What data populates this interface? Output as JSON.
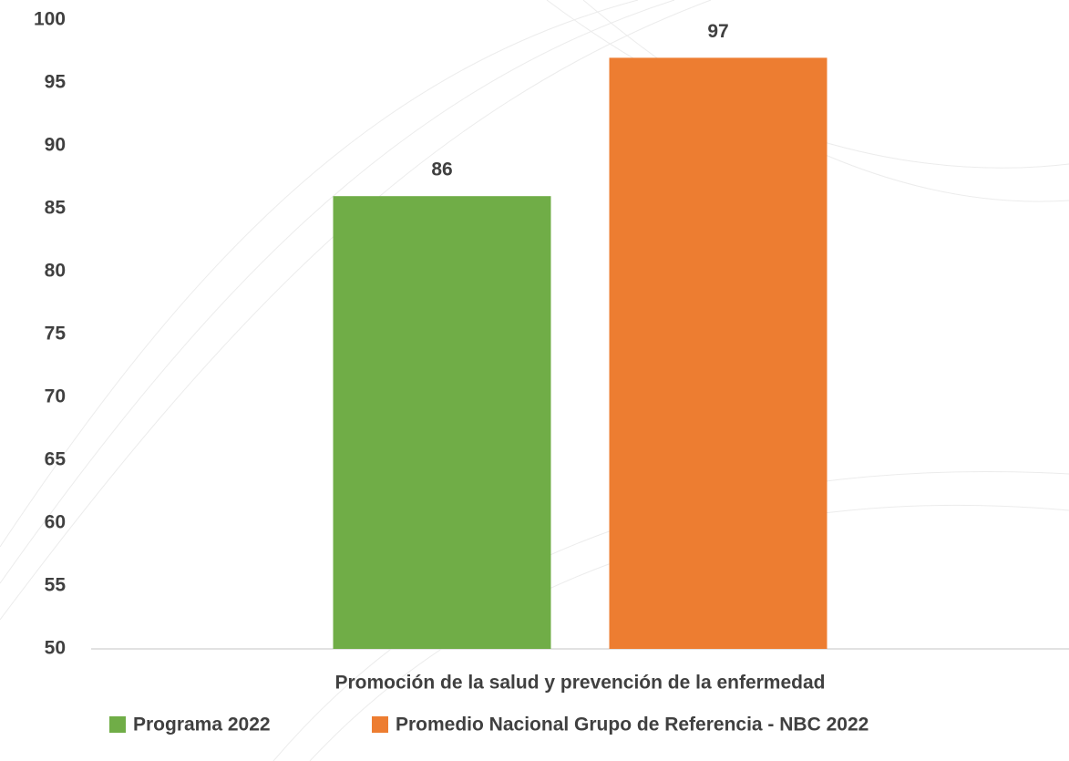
{
  "chart_data": {
    "type": "bar",
    "categories": [
      "Promoción de la salud y prevención de la enfermedad"
    ],
    "series": [
      {
        "name": "Programa 2022",
        "color": "#70ad47",
        "values": [
          86
        ]
      },
      {
        "name": "Promedio Nacional Grupo de Referencia - NBC 2022",
        "color": "#ed7d31",
        "values": [
          97
        ]
      }
    ],
    "ylim": [
      50,
      100
    ],
    "yticks": [
      50,
      55,
      60,
      65,
      70,
      75,
      80,
      85,
      90,
      95,
      100
    ],
    "grid": false,
    "legend": "bottom"
  }
}
